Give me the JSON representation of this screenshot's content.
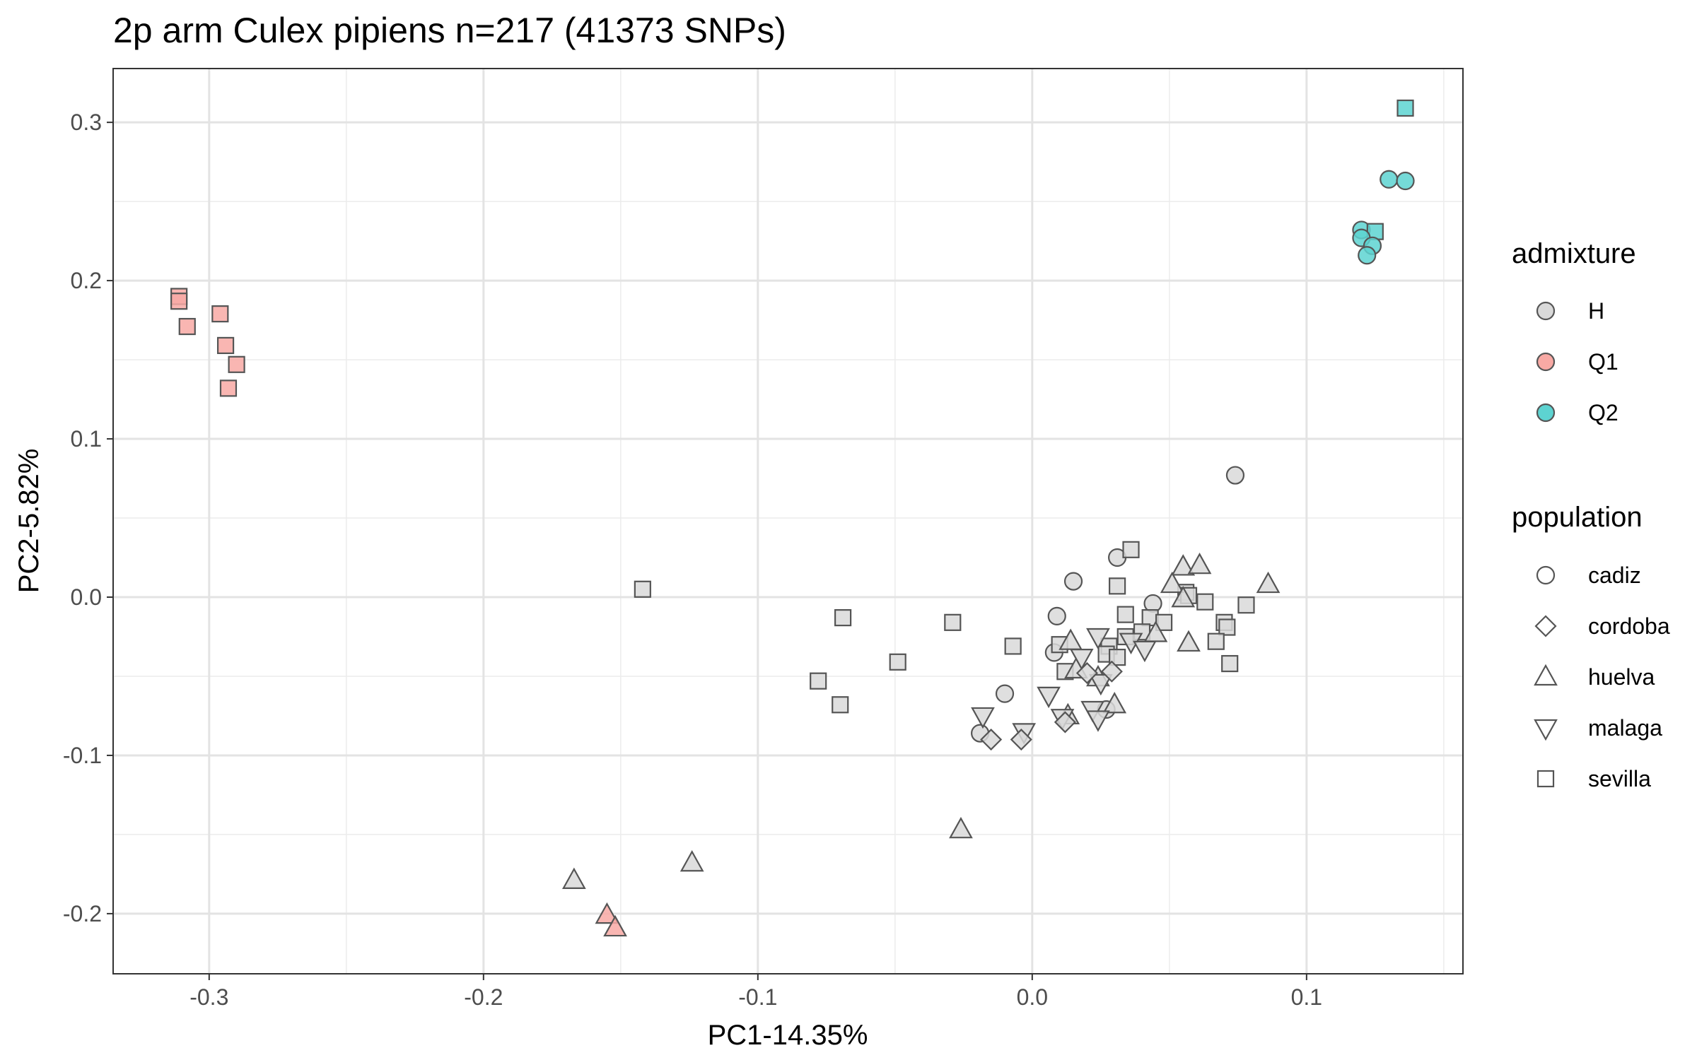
{
  "chart_data": {
    "type": "scatter",
    "title": "2p arm Culex pipiens  n=217 (41373 SNPs)",
    "xlabel": "PC1-14.35%",
    "ylabel": "PC2-5.82%",
    "xlim": [
      -0.335,
      0.157
    ],
    "ylim": [
      -0.238,
      0.334
    ],
    "x_ticks": [
      -0.3,
      -0.2,
      -0.1,
      0.0,
      0.1
    ],
    "x_tick_labels": [
      "-0.3",
      "-0.2",
      "-0.1",
      "0.0",
      "0.1"
    ],
    "y_ticks": [
      -0.2,
      -0.1,
      0.0,
      0.1,
      0.2,
      0.3
    ],
    "y_tick_labels": [
      "-0.2",
      "-0.1",
      "0.0",
      "0.1",
      "0.2",
      "0.3"
    ],
    "grid": true,
    "legend_position": "right",
    "colors": {
      "H": "#d9d9d9",
      "Q1": "#f8a9a4",
      "Q2": "#5dd3d1"
    },
    "legend": {
      "admixture": {
        "title": "admixture",
        "items": [
          "H",
          "Q1",
          "Q2"
        ]
      },
      "population": {
        "title": "population",
        "items": [
          "cadiz",
          "cordoba",
          "huelva",
          "malaga",
          "sevilla"
        ]
      }
    },
    "points": [
      {
        "x": -0.311,
        "y": 0.19,
        "admixture": "Q1",
        "population": "sevilla"
      },
      {
        "x": -0.311,
        "y": 0.187,
        "admixture": "Q1",
        "population": "sevilla"
      },
      {
        "x": -0.308,
        "y": 0.171,
        "admixture": "Q1",
        "population": "sevilla"
      },
      {
        "x": -0.296,
        "y": 0.179,
        "admixture": "Q1",
        "population": "sevilla"
      },
      {
        "x": -0.294,
        "y": 0.159,
        "admixture": "Q1",
        "population": "sevilla"
      },
      {
        "x": -0.29,
        "y": 0.147,
        "admixture": "Q1",
        "population": "sevilla"
      },
      {
        "x": -0.293,
        "y": 0.132,
        "admixture": "Q1",
        "population": "sevilla"
      },
      {
        "x": 0.136,
        "y": 0.309,
        "admixture": "Q2",
        "population": "sevilla"
      },
      {
        "x": 0.13,
        "y": 0.264,
        "admixture": "Q2",
        "population": "cadiz"
      },
      {
        "x": 0.136,
        "y": 0.263,
        "admixture": "Q2",
        "population": "cadiz"
      },
      {
        "x": 0.12,
        "y": 0.232,
        "admixture": "Q2",
        "population": "cadiz"
      },
      {
        "x": 0.125,
        "y": 0.231,
        "admixture": "Q2",
        "population": "sevilla"
      },
      {
        "x": 0.12,
        "y": 0.227,
        "admixture": "Q2",
        "population": "cadiz"
      },
      {
        "x": 0.124,
        "y": 0.222,
        "admixture": "Q2",
        "population": "cadiz"
      },
      {
        "x": 0.122,
        "y": 0.216,
        "admixture": "Q2",
        "population": "cadiz"
      },
      {
        "x": -0.155,
        "y": -0.201,
        "admixture": "Q1",
        "population": "huelva"
      },
      {
        "x": -0.152,
        "y": -0.209,
        "admixture": "Q1",
        "population": "huelva"
      },
      {
        "x": -0.167,
        "y": -0.179,
        "admixture": "H",
        "population": "huelva"
      },
      {
        "x": -0.124,
        "y": -0.168,
        "admixture": "H",
        "population": "huelva"
      },
      {
        "x": -0.026,
        "y": -0.147,
        "admixture": "H",
        "population": "huelva"
      },
      {
        "x": -0.142,
        "y": 0.005,
        "admixture": "H",
        "population": "sevilla"
      },
      {
        "x": -0.069,
        "y": -0.013,
        "admixture": "H",
        "population": "sevilla"
      },
      {
        "x": -0.029,
        "y": -0.016,
        "admixture": "H",
        "population": "sevilla"
      },
      {
        "x": -0.049,
        "y": -0.041,
        "admixture": "H",
        "population": "sevilla"
      },
      {
        "x": -0.078,
        "y": -0.053,
        "admixture": "H",
        "population": "sevilla"
      },
      {
        "x": -0.07,
        "y": -0.068,
        "admixture": "H",
        "population": "sevilla"
      },
      {
        "x": -0.007,
        "y": -0.031,
        "admixture": "H",
        "population": "sevilla"
      },
      {
        "x": 0.074,
        "y": 0.077,
        "admixture": "H",
        "population": "cadiz"
      },
      {
        "x": 0.015,
        "y": 0.01,
        "admixture": "H",
        "population": "cadiz"
      },
      {
        "x": 0.031,
        "y": 0.025,
        "admixture": "H",
        "population": "cadiz"
      },
      {
        "x": 0.009,
        "y": -0.012,
        "admixture": "H",
        "population": "cadiz"
      },
      {
        "x": 0.044,
        "y": -0.004,
        "admixture": "H",
        "population": "cadiz"
      },
      {
        "x": 0.008,
        "y": -0.035,
        "admixture": "H",
        "population": "cadiz"
      },
      {
        "x": -0.01,
        "y": -0.061,
        "admixture": "H",
        "population": "cadiz"
      },
      {
        "x": -0.019,
        "y": -0.086,
        "admixture": "H",
        "population": "cadiz"
      },
      {
        "x": 0.027,
        "y": -0.071,
        "admixture": "H",
        "population": "cadiz"
      },
      {
        "x": 0.036,
        "y": 0.03,
        "admixture": "H",
        "population": "sevilla"
      },
      {
        "x": 0.031,
        "y": 0.007,
        "admixture": "H",
        "population": "sevilla"
      },
      {
        "x": 0.056,
        "y": 0.003,
        "admixture": "H",
        "population": "sevilla"
      },
      {
        "x": 0.063,
        "y": -0.003,
        "admixture": "H",
        "population": "sevilla"
      },
      {
        "x": 0.078,
        "y": -0.005,
        "admixture": "H",
        "population": "sevilla"
      },
      {
        "x": 0.034,
        "y": -0.011,
        "admixture": "H",
        "population": "sevilla"
      },
      {
        "x": 0.043,
        "y": -0.013,
        "admixture": "H",
        "population": "sevilla"
      },
      {
        "x": 0.048,
        "y": -0.016,
        "admixture": "H",
        "population": "sevilla"
      },
      {
        "x": 0.07,
        "y": -0.016,
        "admixture": "H",
        "population": "sevilla"
      },
      {
        "x": 0.071,
        "y": -0.019,
        "admixture": "H",
        "population": "sevilla"
      },
      {
        "x": 0.04,
        "y": -0.022,
        "admixture": "H",
        "population": "sevilla"
      },
      {
        "x": 0.034,
        "y": -0.025,
        "admixture": "H",
        "population": "sevilla"
      },
      {
        "x": 0.067,
        "y": -0.028,
        "admixture": "H",
        "population": "sevilla"
      },
      {
        "x": 0.01,
        "y": -0.03,
        "admixture": "H",
        "population": "sevilla"
      },
      {
        "x": 0.028,
        "y": -0.031,
        "admixture": "H",
        "population": "sevilla"
      },
      {
        "x": 0.027,
        "y": -0.036,
        "admixture": "H",
        "population": "sevilla"
      },
      {
        "x": 0.031,
        "y": -0.038,
        "admixture": "H",
        "population": "sevilla"
      },
      {
        "x": 0.072,
        "y": -0.042,
        "admixture": "H",
        "population": "sevilla"
      },
      {
        "x": 0.012,
        "y": -0.047,
        "admixture": "H",
        "population": "sevilla"
      },
      {
        "x": 0.057,
        "y": 0.001,
        "admixture": "H",
        "population": "sevilla"
      },
      {
        "x": 0.055,
        "y": 0.019,
        "admixture": "H",
        "population": "huelva"
      },
      {
        "x": 0.061,
        "y": 0.02,
        "admixture": "H",
        "population": "huelva"
      },
      {
        "x": 0.086,
        "y": 0.008,
        "admixture": "H",
        "population": "huelva"
      },
      {
        "x": 0.051,
        "y": 0.008,
        "admixture": "H",
        "population": "huelva"
      },
      {
        "x": 0.055,
        "y": -0.001,
        "admixture": "H",
        "population": "huelva"
      },
      {
        "x": 0.057,
        "y": -0.029,
        "admixture": "H",
        "population": "huelva"
      },
      {
        "x": 0.045,
        "y": -0.023,
        "admixture": "H",
        "population": "huelva"
      },
      {
        "x": 0.014,
        "y": -0.028,
        "admixture": "H",
        "population": "huelva"
      },
      {
        "x": 0.016,
        "y": -0.046,
        "admixture": "H",
        "population": "huelva"
      },
      {
        "x": 0.024,
        "y": -0.051,
        "admixture": "H",
        "population": "huelva"
      },
      {
        "x": 0.013,
        "y": -0.075,
        "admixture": "H",
        "population": "huelva"
      },
      {
        "x": 0.03,
        "y": -0.068,
        "admixture": "H",
        "population": "huelva"
      },
      {
        "x": 0.024,
        "y": -0.025,
        "admixture": "H",
        "population": "malaga"
      },
      {
        "x": 0.018,
        "y": -0.038,
        "admixture": "H",
        "population": "malaga"
      },
      {
        "x": 0.036,
        "y": -0.028,
        "admixture": "H",
        "population": "malaga"
      },
      {
        "x": 0.041,
        "y": -0.033,
        "admixture": "H",
        "population": "malaga"
      },
      {
        "x": 0.025,
        "y": -0.054,
        "admixture": "H",
        "population": "malaga"
      },
      {
        "x": 0.006,
        "y": -0.062,
        "admixture": "H",
        "population": "malaga"
      },
      {
        "x": -0.018,
        "y": -0.075,
        "admixture": "H",
        "population": "malaga"
      },
      {
        "x": -0.003,
        "y": -0.085,
        "admixture": "H",
        "population": "malaga"
      },
      {
        "x": 0.022,
        "y": -0.071,
        "admixture": "H",
        "population": "malaga"
      },
      {
        "x": 0.024,
        "y": -0.077,
        "admixture": "H",
        "population": "malaga"
      },
      {
        "x": 0.011,
        "y": -0.076,
        "admixture": "H",
        "population": "malaga"
      },
      {
        "x": 0.029,
        "y": -0.047,
        "admixture": "H",
        "population": "cordoba"
      },
      {
        "x": 0.02,
        "y": -0.048,
        "admixture": "H",
        "population": "cordoba"
      },
      {
        "x": 0.012,
        "y": -0.079,
        "admixture": "H",
        "population": "cordoba"
      },
      {
        "x": -0.004,
        "y": -0.09,
        "admixture": "H",
        "population": "cordoba"
      },
      {
        "x": -0.015,
        "y": -0.09,
        "admixture": "H",
        "population": "cordoba"
      }
    ]
  }
}
